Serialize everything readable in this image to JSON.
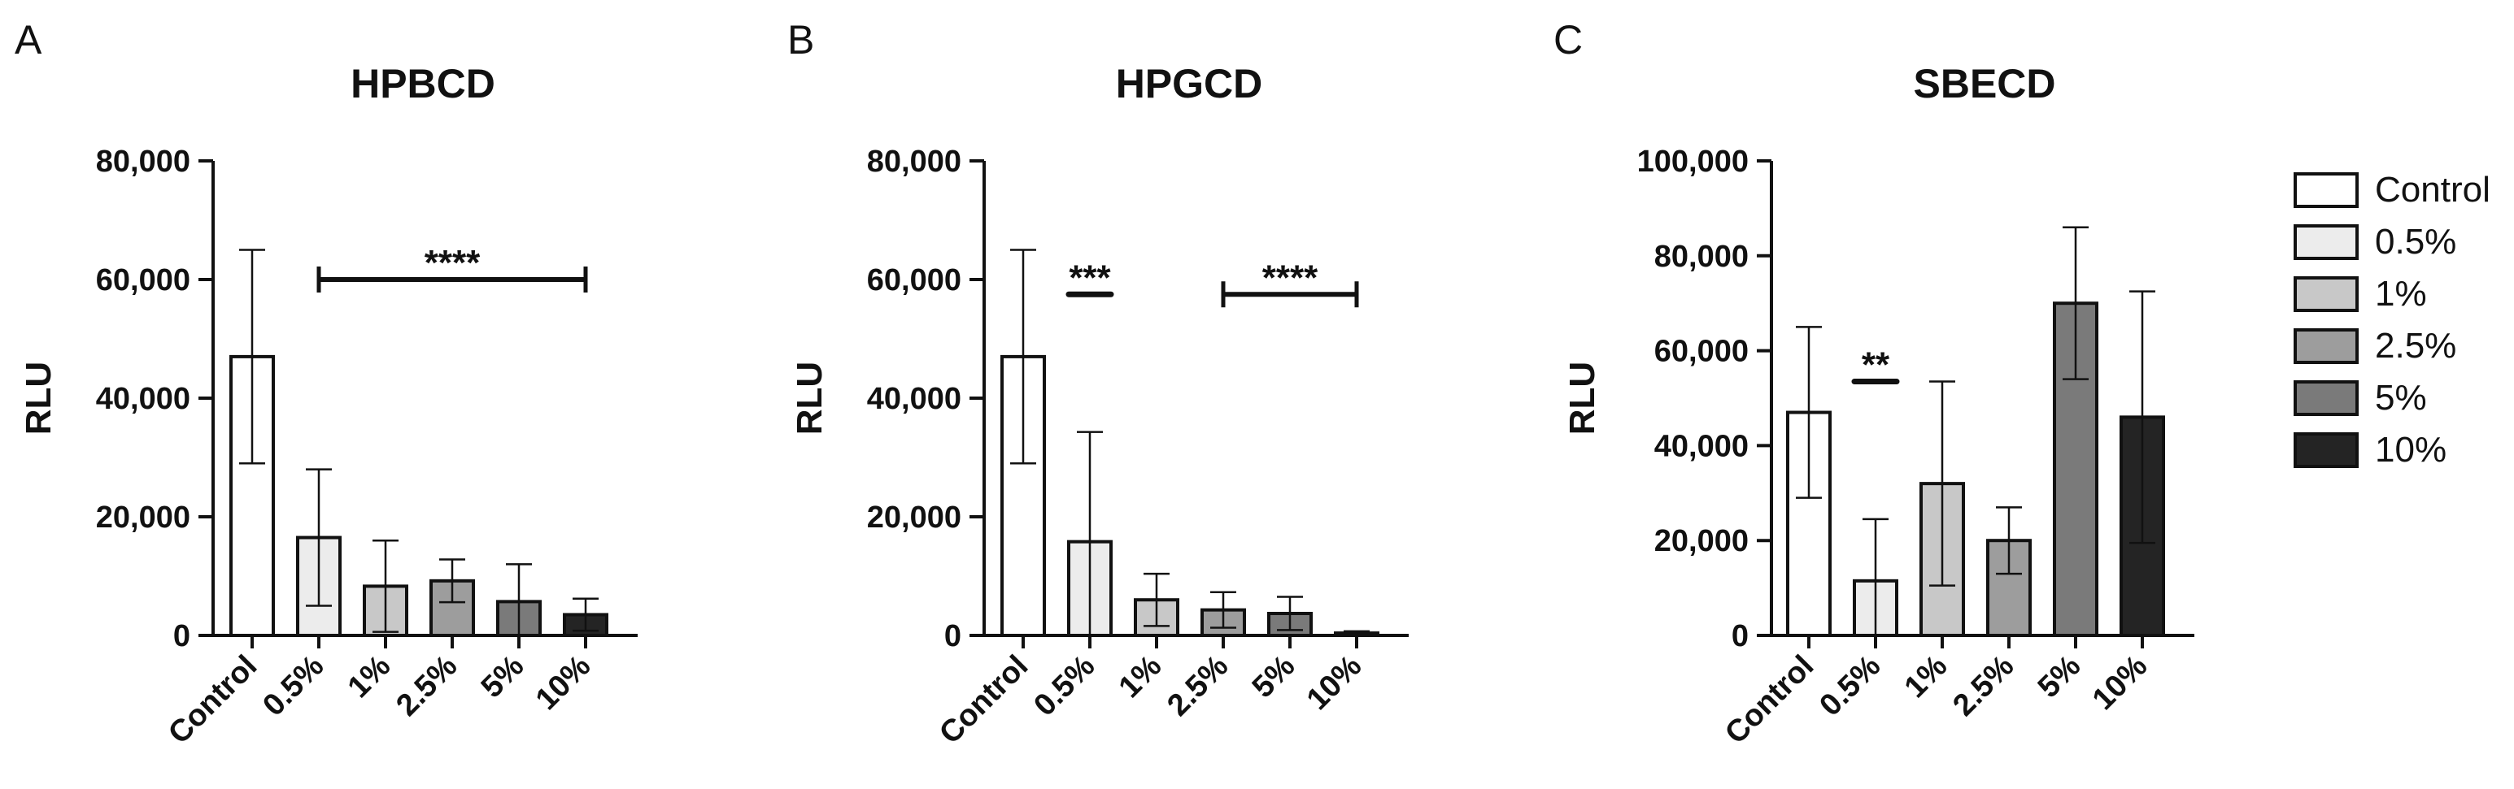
{
  "legend": {
    "items": [
      {
        "label": "Control",
        "color": "#ffffff"
      },
      {
        "label": "0.5%",
        "color": "#ececec"
      },
      {
        "label": "1%",
        "color": "#c8c8c8"
      },
      {
        "label": "2.5%",
        "color": "#9d9d9d"
      },
      {
        "label": "5%",
        "color": "#7a7a7a"
      },
      {
        "label": "10%",
        "color": "#242424"
      }
    ]
  },
  "chart_data": [
    {
      "type": "bar",
      "panel": "A",
      "title": "HPBCD",
      "ylabel": "RLU",
      "xlabel": "",
      "categories": [
        "Control",
        "0.5%",
        "1%",
        "2.5%",
        "5%",
        "10%"
      ],
      "values": [
        47000,
        16500,
        8300,
        9200,
        5700,
        3500
      ],
      "error_up": [
        18000,
        11500,
        7700,
        3600,
        6300,
        2700
      ],
      "ylim": [
        0,
        80000
      ],
      "yticks": [
        0,
        20000,
        40000,
        60000,
        80000
      ],
      "ytick_labels": [
        "0",
        "20,000",
        "40,000",
        "60,000",
        "80,000"
      ],
      "grid": false,
      "significance": [
        {
          "label": "****",
          "from": "0.5%",
          "to": "10%",
          "y": 60000
        }
      ]
    },
    {
      "type": "bar",
      "panel": "B",
      "title": "HPGCD",
      "ylabel": "RLU",
      "xlabel": "",
      "categories": [
        "Control",
        "0.5%",
        "1%",
        "2.5%",
        "5%",
        "10%"
      ],
      "values": [
        47000,
        15800,
        6000,
        4300,
        3700,
        400
      ],
      "error_up": [
        18000,
        18500,
        4400,
        3000,
        2800,
        300
      ],
      "ylim": [
        0,
        80000
      ],
      "yticks": [
        0,
        20000,
        40000,
        60000,
        80000
      ],
      "ytick_labels": [
        "0",
        "20,000",
        "40,000",
        "60,000",
        "80,000"
      ],
      "grid": false,
      "significance": [
        {
          "label": "***",
          "from": "0.5%",
          "to": "0.5%",
          "y": 57500
        },
        {
          "label": "****",
          "from": "2.5%",
          "to": "10%",
          "y": 57500
        }
      ]
    },
    {
      "type": "bar",
      "panel": "C",
      "title": "SBECD",
      "ylabel": "RLU",
      "xlabel": "",
      "categories": [
        "Control",
        "0.5%",
        "1%",
        "2.5%",
        "5%",
        "10%"
      ],
      "values": [
        47000,
        11500,
        32000,
        20000,
        70000,
        46000
      ],
      "error_up": [
        18000,
        13000,
        21500,
        7000,
        16000,
        26500
      ],
      "ylim": [
        0,
        100000
      ],
      "yticks": [
        0,
        20000,
        40000,
        60000,
        80000,
        100000
      ],
      "ytick_labels": [
        "0",
        "20,000",
        "40,000",
        "60,000",
        "80,000",
        "100,000"
      ],
      "grid": false,
      "significance": [
        {
          "label": "**",
          "from": "0.5%",
          "to": "0.5%",
          "y": 53500
        }
      ]
    }
  ]
}
